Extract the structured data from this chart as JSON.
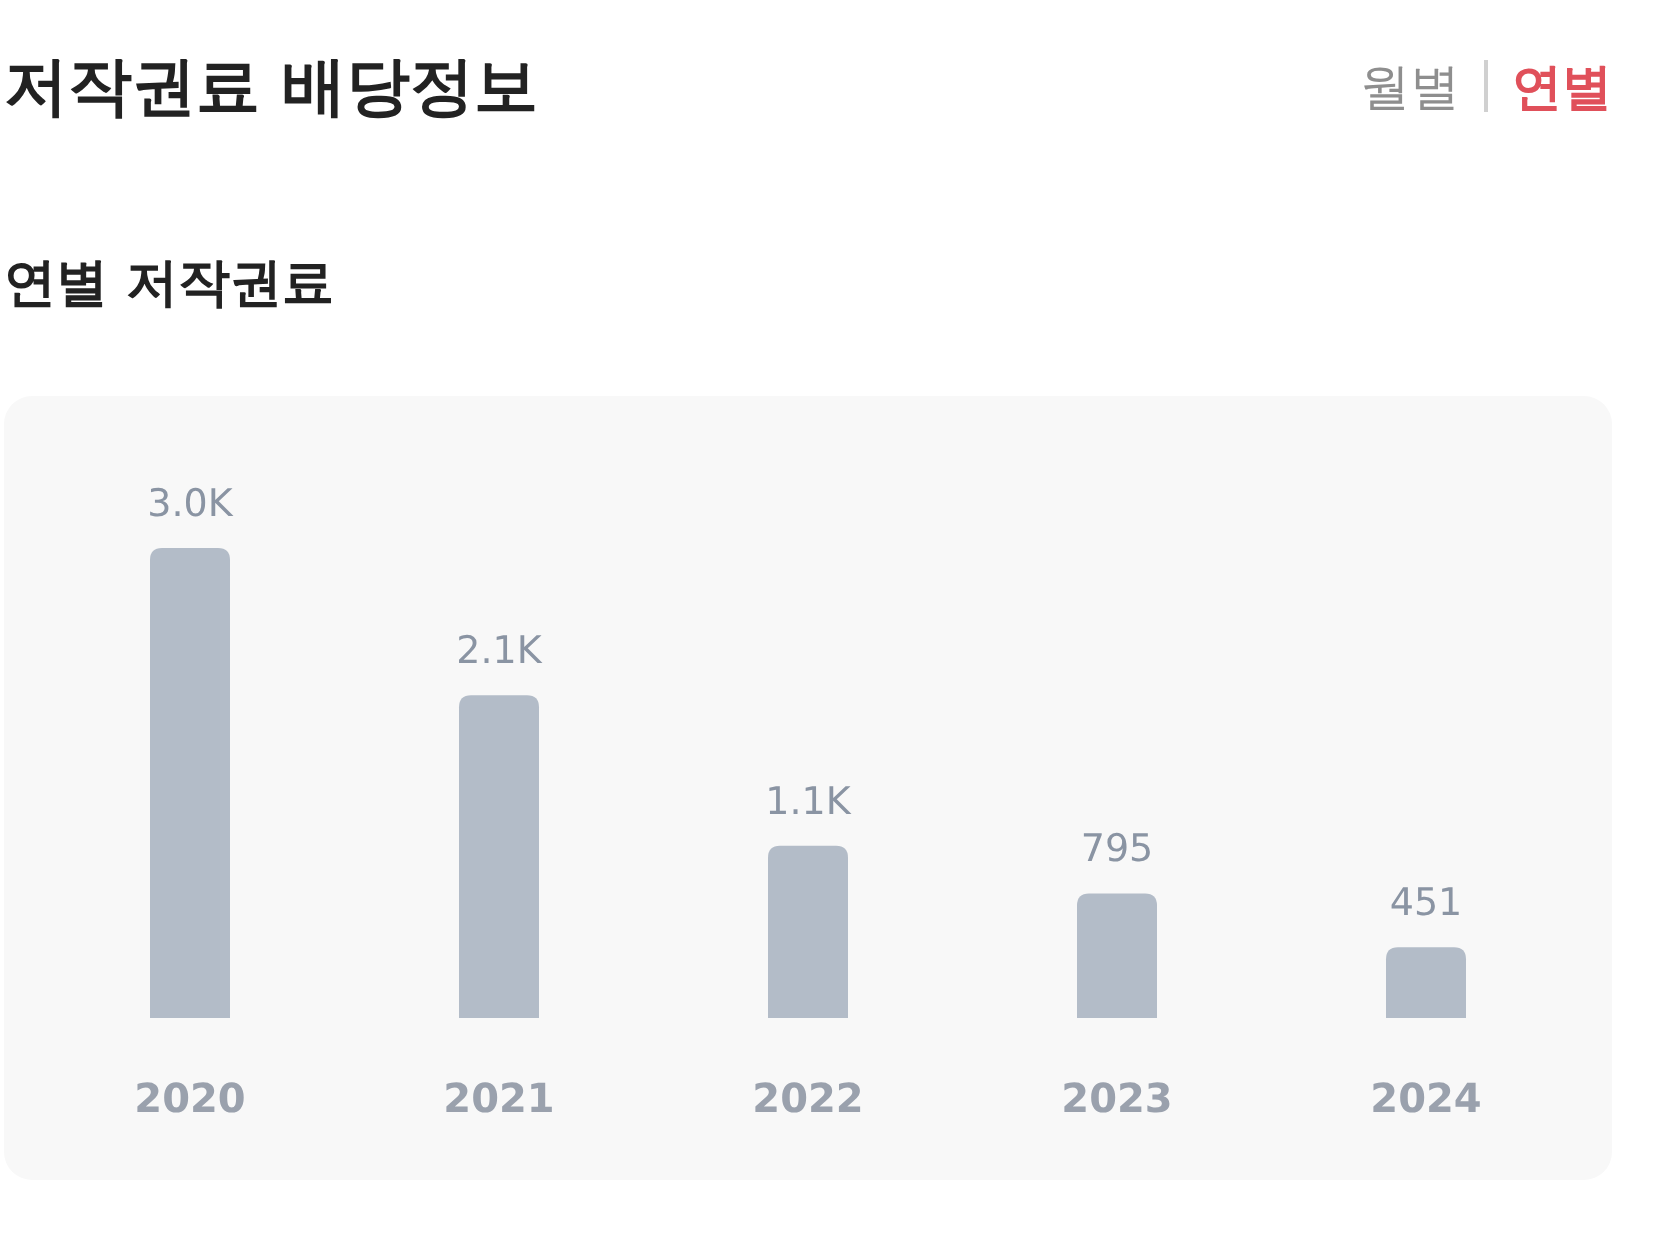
{
  "chart_data": {
    "type": "bar",
    "title": "저작권료 배당정보",
    "subtitle": "연별 저작권료",
    "annotations": [
      "월별",
      "연별"
    ],
    "categories": [
      "2020",
      "2021",
      "2022",
      "2023",
      "2024"
    ],
    "values": [
      3000,
      2060,
      1100,
      795,
      451
    ],
    "value_labels": [
      "3.0K",
      "2.1K",
      "1.1K",
      "795",
      "451"
    ],
    "color": "#b3bcc8"
  }
}
